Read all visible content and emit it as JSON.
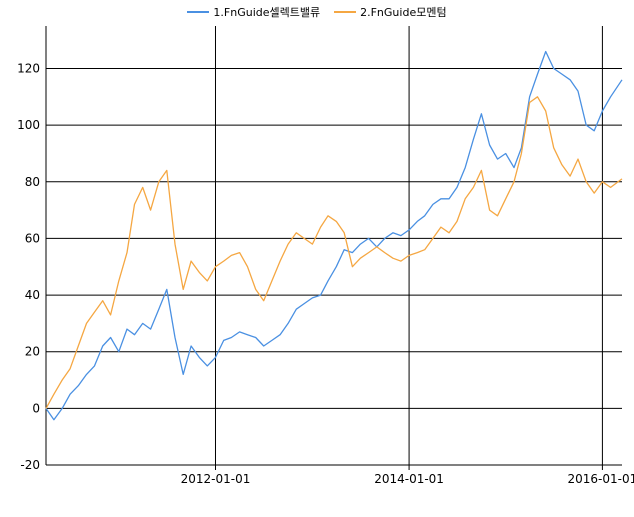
{
  "chart_data": {
    "type": "line",
    "title": "",
    "xlabel": "",
    "ylabel": "",
    "x_range": [
      "2010-04-01",
      "2016-03-15"
    ],
    "ylim": [
      -20,
      135
    ],
    "y_ticks": [
      -20,
      0,
      20,
      40,
      60,
      80,
      100,
      120
    ],
    "x_ticks": [
      {
        "date": "2012-01-01",
        "label": "2012-01-01"
      },
      {
        "date": "2014-01-01",
        "label": "2014-01-01"
      },
      {
        "date": "2016-01-01",
        "label": "2016-01-01"
      }
    ],
    "grid": true,
    "legend_position": "top-center",
    "series": [
      {
        "name": "1.FnGuide셀렉트밸류",
        "color": "#4a90e2",
        "points": [
          [
            "2010-04-01",
            0
          ],
          [
            "2010-05-01",
            -4
          ],
          [
            "2010-06-01",
            0
          ],
          [
            "2010-07-01",
            5
          ],
          [
            "2010-08-01",
            8
          ],
          [
            "2010-09-01",
            12
          ],
          [
            "2010-10-01",
            15
          ],
          [
            "2010-11-01",
            22
          ],
          [
            "2010-12-01",
            25
          ],
          [
            "2011-01-01",
            20
          ],
          [
            "2011-02-01",
            28
          ],
          [
            "2011-03-01",
            26
          ],
          [
            "2011-04-01",
            30
          ],
          [
            "2011-05-01",
            28
          ],
          [
            "2011-06-01",
            35
          ],
          [
            "2011-07-01",
            42
          ],
          [
            "2011-08-01",
            25
          ],
          [
            "2011-09-01",
            12
          ],
          [
            "2011-10-01",
            22
          ],
          [
            "2011-11-01",
            18
          ],
          [
            "2011-12-01",
            15
          ],
          [
            "2012-01-01",
            18
          ],
          [
            "2012-02-01",
            24
          ],
          [
            "2012-03-01",
            25
          ],
          [
            "2012-04-01",
            27
          ],
          [
            "2012-05-01",
            26
          ],
          [
            "2012-06-01",
            25
          ],
          [
            "2012-07-01",
            22
          ],
          [
            "2012-08-01",
            24
          ],
          [
            "2012-09-01",
            26
          ],
          [
            "2012-10-01",
            30
          ],
          [
            "2012-11-01",
            35
          ],
          [
            "2012-12-01",
            37
          ],
          [
            "2013-01-01",
            39
          ],
          [
            "2013-02-01",
            40
          ],
          [
            "2013-03-01",
            45
          ],
          [
            "2013-04-01",
            50
          ],
          [
            "2013-05-01",
            56
          ],
          [
            "2013-06-01",
            55
          ],
          [
            "2013-07-01",
            58
          ],
          [
            "2013-08-01",
            60
          ],
          [
            "2013-09-01",
            57
          ],
          [
            "2013-10-01",
            60
          ],
          [
            "2013-11-01",
            62
          ],
          [
            "2013-12-01",
            61
          ],
          [
            "2014-01-01",
            63
          ],
          [
            "2014-02-01",
            66
          ],
          [
            "2014-03-01",
            68
          ],
          [
            "2014-04-01",
            72
          ],
          [
            "2014-05-01",
            74
          ],
          [
            "2014-06-01",
            74
          ],
          [
            "2014-07-01",
            78
          ],
          [
            "2014-08-01",
            85
          ],
          [
            "2014-09-01",
            95
          ],
          [
            "2014-10-01",
            104
          ],
          [
            "2014-11-01",
            93
          ],
          [
            "2014-12-01",
            88
          ],
          [
            "2015-01-01",
            90
          ],
          [
            "2015-02-01",
            85
          ],
          [
            "2015-03-01",
            92
          ],
          [
            "2015-04-01",
            110
          ],
          [
            "2015-05-01",
            118
          ],
          [
            "2015-06-01",
            126
          ],
          [
            "2015-07-01",
            120
          ],
          [
            "2015-08-01",
            118
          ],
          [
            "2015-09-01",
            116
          ],
          [
            "2015-10-01",
            112
          ],
          [
            "2015-11-01",
            100
          ],
          [
            "2015-12-01",
            98
          ],
          [
            "2016-01-01",
            105
          ],
          [
            "2016-02-01",
            110
          ],
          [
            "2016-03-15",
            116
          ]
        ]
      },
      {
        "name": "2.FnGuide모멘텀",
        "color": "#f5a742",
        "points": [
          [
            "2010-04-01",
            0
          ],
          [
            "2010-05-01",
            5
          ],
          [
            "2010-06-01",
            10
          ],
          [
            "2010-07-01",
            14
          ],
          [
            "2010-08-01",
            22
          ],
          [
            "2010-09-01",
            30
          ],
          [
            "2010-10-01",
            34
          ],
          [
            "2010-11-01",
            38
          ],
          [
            "2010-12-01",
            33
          ],
          [
            "2011-01-01",
            45
          ],
          [
            "2011-02-01",
            55
          ],
          [
            "2011-03-01",
            72
          ],
          [
            "2011-04-01",
            78
          ],
          [
            "2011-05-01",
            70
          ],
          [
            "2011-06-01",
            80
          ],
          [
            "2011-07-01",
            84
          ],
          [
            "2011-08-01",
            58
          ],
          [
            "2011-09-01",
            42
          ],
          [
            "2011-10-01",
            52
          ],
          [
            "2011-11-01",
            48
          ],
          [
            "2011-12-01",
            45
          ],
          [
            "2012-01-01",
            50
          ],
          [
            "2012-02-01",
            52
          ],
          [
            "2012-03-01",
            54
          ],
          [
            "2012-04-01",
            55
          ],
          [
            "2012-05-01",
            50
          ],
          [
            "2012-06-01",
            42
          ],
          [
            "2012-07-01",
            38
          ],
          [
            "2012-08-01",
            45
          ],
          [
            "2012-09-01",
            52
          ],
          [
            "2012-10-01",
            58
          ],
          [
            "2012-11-01",
            62
          ],
          [
            "2012-12-01",
            60
          ],
          [
            "2013-01-01",
            58
          ],
          [
            "2013-02-01",
            64
          ],
          [
            "2013-03-01",
            68
          ],
          [
            "2013-04-01",
            66
          ],
          [
            "2013-05-01",
            62
          ],
          [
            "2013-06-01",
            50
          ],
          [
            "2013-07-01",
            53
          ],
          [
            "2013-08-01",
            55
          ],
          [
            "2013-09-01",
            57
          ],
          [
            "2013-10-01",
            55
          ],
          [
            "2013-11-01",
            53
          ],
          [
            "2013-12-01",
            52
          ],
          [
            "2014-01-01",
            54
          ],
          [
            "2014-02-01",
            55
          ],
          [
            "2014-03-01",
            56
          ],
          [
            "2014-04-01",
            60
          ],
          [
            "2014-05-01",
            64
          ],
          [
            "2014-06-01",
            62
          ],
          [
            "2014-07-01",
            66
          ],
          [
            "2014-08-01",
            74
          ],
          [
            "2014-09-01",
            78
          ],
          [
            "2014-10-01",
            84
          ],
          [
            "2014-11-01",
            70
          ],
          [
            "2014-12-01",
            68
          ],
          [
            "2015-01-01",
            74
          ],
          [
            "2015-02-01",
            80
          ],
          [
            "2015-03-01",
            90
          ],
          [
            "2015-04-01",
            108
          ],
          [
            "2015-05-01",
            110
          ],
          [
            "2015-06-01",
            105
          ],
          [
            "2015-07-01",
            92
          ],
          [
            "2015-08-01",
            86
          ],
          [
            "2015-09-01",
            82
          ],
          [
            "2015-10-01",
            88
          ],
          [
            "2015-11-01",
            80
          ],
          [
            "2015-12-01",
            76
          ],
          [
            "2016-01-01",
            80
          ],
          [
            "2016-02-01",
            78
          ],
          [
            "2016-03-15",
            81
          ]
        ]
      }
    ]
  }
}
